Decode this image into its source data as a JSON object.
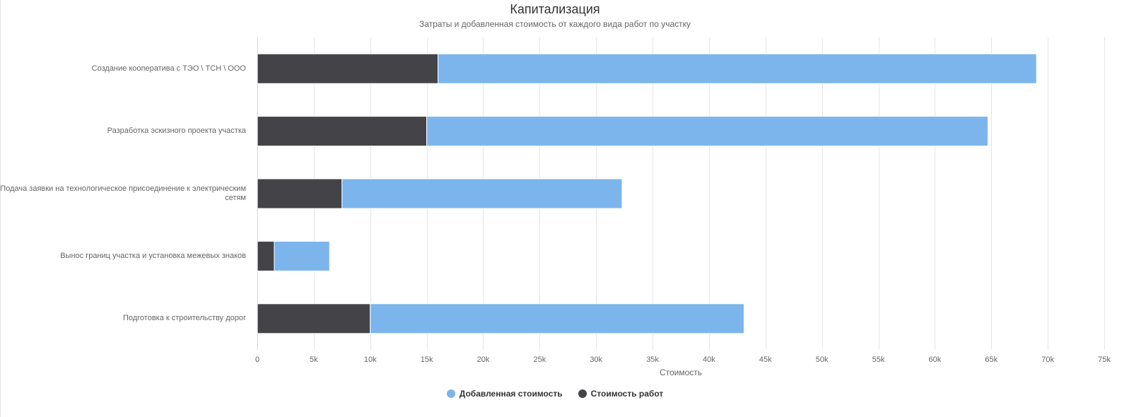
{
  "colors": {
    "added_value": "#7cb5ec",
    "work_cost": "#434348"
  },
  "chart_data": {
    "type": "bar",
    "orientation": "horizontal",
    "stacked": true,
    "title": "Капитализация",
    "subtitle": "Затраты и добавленная стоимость от каждого вида работ по участку",
    "categories": [
      "Создание кооператива с ТЭО \\ ТСН \\ ООО",
      "Разработка эскизного проекта участка",
      "Подача заявки на технологическое присоединение к электрическим сетям",
      "Вынос границ участка и установка межевых знаков",
      "Подготовка к строительству дорог"
    ],
    "series": [
      {
        "name": "Стоимость работ",
        "color": "#434348",
        "values": [
          16000,
          15000,
          7500,
          1500,
          10000
        ]
      },
      {
        "name": "Добавленная стоимость",
        "color": "#7cb5ec",
        "values": [
          53000,
          49700,
          24800,
          4900,
          33100
        ]
      }
    ],
    "xlabel": "Стоимость",
    "xlim": [
      0,
      75000
    ],
    "x_ticks": [
      "0",
      "5k",
      "10k",
      "15k",
      "20k",
      "25k",
      "30k",
      "35k",
      "40k",
      "45k",
      "50k",
      "55k",
      "60k",
      "65k",
      "70k",
      "75k"
    ],
    "grid": true,
    "legend": {
      "position": "bottom-center",
      "items": [
        "Добавленная стоимость",
        "Стоимость работ"
      ]
    }
  }
}
